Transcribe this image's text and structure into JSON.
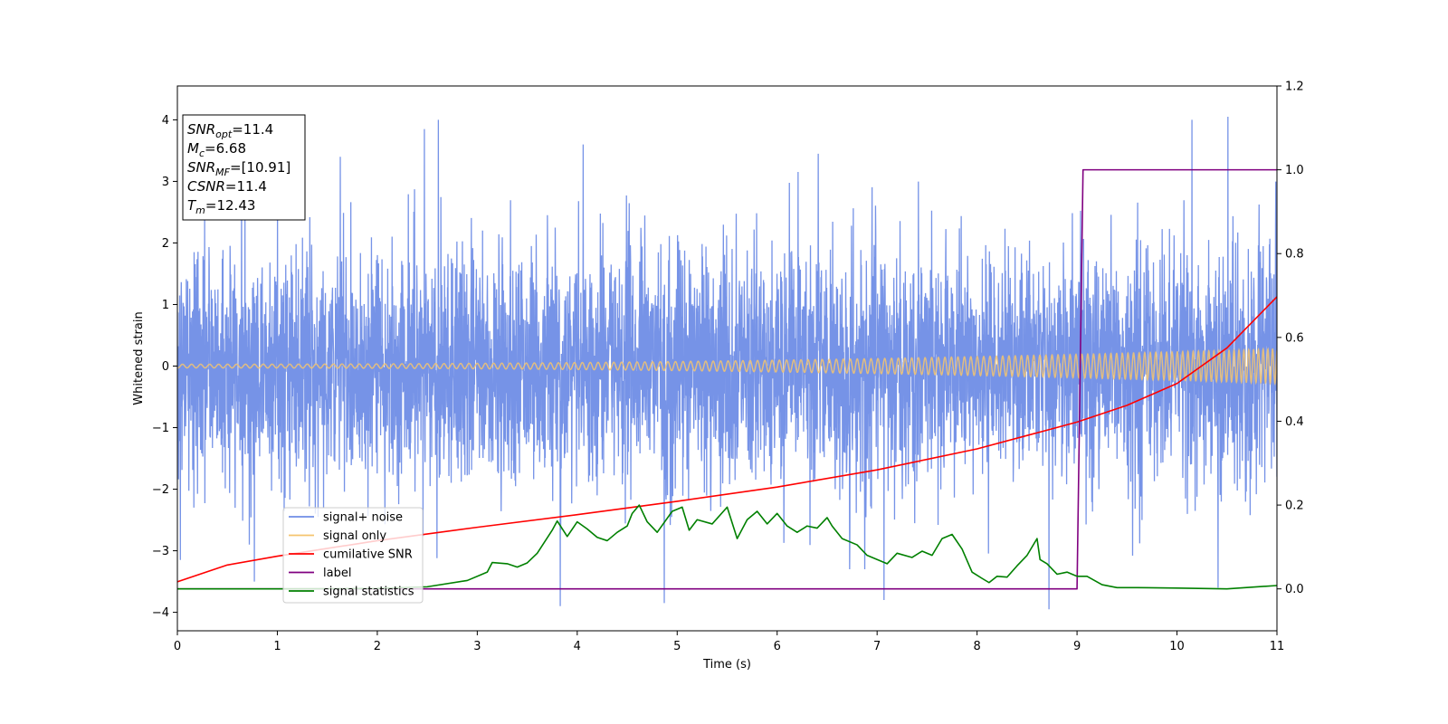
{
  "chart_data": {
    "type": "line",
    "xlabel": "Time (s)",
    "ylabel": "Whitened strain",
    "xlim": [
      0,
      11
    ],
    "ylim": [
      -4.3,
      4.55
    ],
    "y2lim": [
      -0.1,
      1.2
    ],
    "x_ticks": [
      "0",
      "1",
      "2",
      "3",
      "4",
      "5",
      "6",
      "7",
      "8",
      "9",
      "10",
      "11"
    ],
    "y_ticks": [
      "−4",
      "−3",
      "−2",
      "−1",
      "0",
      "1",
      "2",
      "3",
      "4"
    ],
    "y2_ticks": [
      "0.0",
      "0.2",
      "0.4",
      "0.6",
      "0.8",
      "1.0",
      "1.2"
    ],
    "grid": false,
    "legend_position": "lower-left",
    "info_box": {
      "lines": [
        {
          "sym": "SNR",
          "sub": "opt",
          "value": "=11.4"
        },
        {
          "sym": "M",
          "sub": "c",
          "value": "=6.68"
        },
        {
          "sym": "SNR",
          "sub": "MF",
          "value": "=[10.91]"
        },
        {
          "sym": "CSNR",
          "sub": "",
          "value": "=11.4"
        },
        {
          "sym": "T",
          "sub": "m",
          "value": "=12.43"
        }
      ]
    },
    "series": [
      {
        "name": "signal+ noise",
        "color": "#6f8de6",
        "axis": "left",
        "kind": "noise",
        "sigma": 1.0,
        "x_range": [
          0,
          11
        ],
        "spikes": [
          {
            "x": 0.03,
            "y": -3.15
          },
          {
            "x": 0.72,
            "y": -2.9
          },
          {
            "x": 0.77,
            "y": -3.5
          },
          {
            "x": 1.63,
            "y": 3.4
          },
          {
            "x": 2.47,
            "y": 3.85
          },
          {
            "x": 2.61,
            "y": 4.0
          },
          {
            "x": 3.83,
            "y": -3.9
          },
          {
            "x": 4.06,
            "y": 3.6
          },
          {
            "x": 4.87,
            "y": -3.85
          },
          {
            "x": 6.41,
            "y": 3.45
          },
          {
            "x": 7.07,
            "y": -3.8
          },
          {
            "x": 8.72,
            "y": -3.95
          },
          {
            "x": 10.15,
            "y": 4.0
          },
          {
            "x": 10.51,
            "y": 4.05
          },
          {
            "x": 10.41,
            "y": -3.6
          }
        ]
      },
      {
        "name": "signal only",
        "color": "#f5c46e",
        "axis": "left",
        "kind": "chirp",
        "amplitude_start": 0.03,
        "amplitude_end": 0.28
      },
      {
        "name": "cumilative SNR",
        "color": "#ff0000",
        "axis": "right",
        "x": [
          0,
          0.5,
          1,
          2,
          3,
          4,
          5,
          6,
          7,
          8,
          9,
          9.5,
          10,
          10.5,
          11
        ],
        "y": [
          0.017,
          0.057,
          0.078,
          0.115,
          0.147,
          0.177,
          0.209,
          0.243,
          0.284,
          0.334,
          0.398,
          0.438,
          0.49,
          0.575,
          0.697
        ]
      },
      {
        "name": "label",
        "color": "#800080",
        "axis": "right",
        "x": [
          0,
          9.0,
          9.06,
          11
        ],
        "y": [
          0,
          0,
          1.0,
          1.0
        ]
      },
      {
        "name": "signal statistics",
        "color": "#008000",
        "axis": "right",
        "x": [
          0,
          1,
          2,
          2.5,
          2.9,
          3.1,
          3.15,
          3.3,
          3.4,
          3.5,
          3.6,
          3.75,
          3.8,
          3.9,
          4.0,
          4.1,
          4.2,
          4.3,
          4.4,
          4.5,
          4.55,
          4.62,
          4.7,
          4.8,
          4.95,
          5.05,
          5.12,
          5.2,
          5.35,
          5.5,
          5.6,
          5.7,
          5.8,
          5.9,
          6.0,
          6.1,
          6.2,
          6.3,
          6.4,
          6.5,
          6.55,
          6.65,
          6.8,
          6.9,
          7.0,
          7.1,
          7.2,
          7.35,
          7.45,
          7.55,
          7.65,
          7.75,
          7.85,
          7.95,
          8.05,
          8.12,
          8.2,
          8.3,
          8.4,
          8.5,
          8.6,
          8.63,
          8.7,
          8.8,
          8.9,
          9.0,
          9.1,
          9.25,
          9.4,
          9.6,
          10.0,
          10.5,
          11.0
        ],
        "y": [
          0.0,
          0.0,
          0.001,
          0.005,
          0.02,
          0.04,
          0.063,
          0.06,
          0.052,
          0.062,
          0.085,
          0.14,
          0.162,
          0.125,
          0.16,
          0.143,
          0.123,
          0.115,
          0.135,
          0.15,
          0.18,
          0.2,
          0.16,
          0.135,
          0.185,
          0.195,
          0.14,
          0.165,
          0.155,
          0.195,
          0.12,
          0.165,
          0.185,
          0.155,
          0.18,
          0.15,
          0.135,
          0.15,
          0.145,
          0.17,
          0.15,
          0.12,
          0.105,
          0.08,
          0.07,
          0.06,
          0.085,
          0.075,
          0.09,
          0.08,
          0.12,
          0.13,
          0.095,
          0.04,
          0.025,
          0.015,
          0.03,
          0.028,
          0.055,
          0.08,
          0.12,
          0.07,
          0.06,
          0.035,
          0.04,
          0.03,
          0.03,
          0.01,
          0.003,
          0.003,
          0.002,
          0.0,
          0.008
        ]
      }
    ]
  }
}
